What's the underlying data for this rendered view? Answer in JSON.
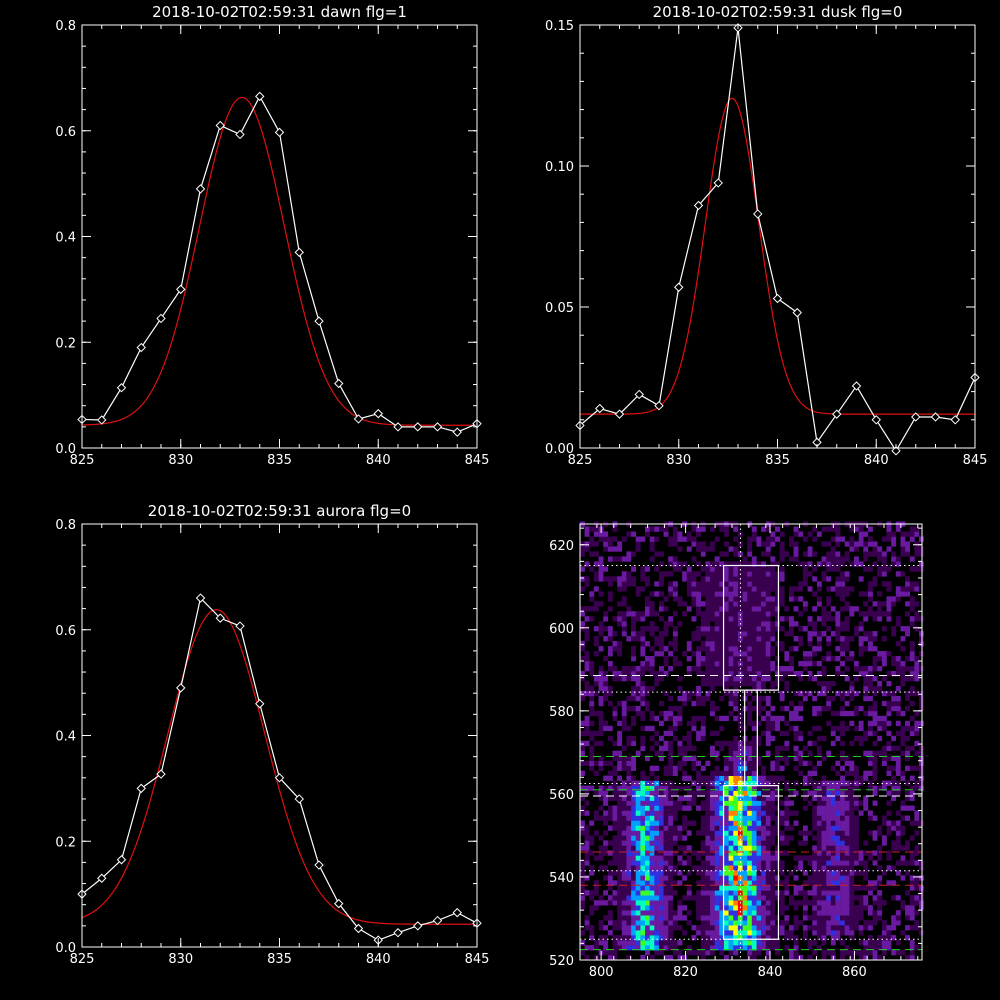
{
  "colors": {
    "background": "#000000",
    "axes": "#ffffff",
    "data_line": "#ffffff",
    "fit_line": "#e01010",
    "guide_green": "#22cc22",
    "guide_red": "#cc2020"
  },
  "chart_data": [
    {
      "type": "line",
      "title": "2018-10-02T02:59:31 dawn flg=1",
      "xlim": [
        825,
        845
      ],
      "ylim": [
        0,
        0.8
      ],
      "xticks": [
        825,
        830,
        835,
        840,
        845
      ],
      "yticks": [
        0.0,
        0.2,
        0.4,
        0.6,
        0.8
      ],
      "xtick_labels": [
        "825",
        "830",
        "835",
        "840",
        "845"
      ],
      "ytick_labels": [
        "0.0",
        "0.2",
        "0.4",
        "0.6",
        "0.8"
      ],
      "grid": false,
      "series": [
        {
          "style": "white-line-diamond-markers",
          "x": [
            825,
            826,
            827,
            828,
            829,
            830,
            831,
            832,
            833,
            834,
            835,
            836,
            837,
            838,
            839,
            840,
            841,
            842,
            843,
            844,
            845
          ],
          "y": [
            0.054,
            0.053,
            0.114,
            0.19,
            0.245,
            0.3,
            0.49,
            0.61,
            0.593,
            0.665,
            0.597,
            0.37,
            0.24,
            0.122,
            0.055,
            0.065,
            0.04,
            0.04,
            0.04,
            0.03,
            0.046
          ]
        },
        {
          "style": "red-gaussian-fit",
          "fit": {
            "amplitude": 0.62,
            "center": 833.1,
            "sigma": 2.15,
            "offset": 0.043
          }
        }
      ]
    },
    {
      "type": "line",
      "title": "2018-10-02T02:59:31 dusk flg=0",
      "xlim": [
        825,
        845
      ],
      "ylim": [
        0,
        0.15
      ],
      "xticks": [
        825,
        830,
        835,
        840,
        845
      ],
      "yticks": [
        0.0,
        0.05,
        0.1,
        0.15
      ],
      "xtick_labels": [
        "825",
        "830",
        "835",
        "840",
        "845"
      ],
      "ytick_labels": [
        "0.00",
        "0.05",
        "0.10",
        "0.15"
      ],
      "grid": false,
      "series": [
        {
          "style": "white-line-diamond-markers",
          "x": [
            825,
            826,
            827,
            828,
            829,
            830,
            831,
            832,
            833,
            834,
            835,
            836,
            837,
            838,
            839,
            840,
            841,
            842,
            843,
            844,
            845
          ],
          "y": [
            0.008,
            0.014,
            0.012,
            0.019,
            0.015,
            0.057,
            0.086,
            0.094,
            0.149,
            0.083,
            0.053,
            0.048,
            0.002,
            0.012,
            0.022,
            0.01,
            -0.001,
            0.011,
            0.011,
            0.01,
            0.025
          ]
        },
        {
          "style": "red-gaussian-fit",
          "fit": {
            "amplitude": 0.112,
            "center": 832.7,
            "sigma": 1.35,
            "offset": 0.012
          }
        }
      ]
    },
    {
      "type": "line",
      "title": "2018-10-02T02:59:31 aurora flg=0",
      "xlim": [
        825,
        845
      ],
      "ylim": [
        0,
        0.8
      ],
      "xticks": [
        825,
        830,
        835,
        840,
        845
      ],
      "yticks": [
        0.0,
        0.2,
        0.4,
        0.6,
        0.8
      ],
      "xtick_labels": [
        "825",
        "830",
        "835",
        "840",
        "845"
      ],
      "ytick_labels": [
        "0.0",
        "0.2",
        "0.4",
        "0.6",
        "0.8"
      ],
      "grid": false,
      "series": [
        {
          "style": "white-line-diamond-markers",
          "x": [
            825,
            826,
            827,
            828,
            829,
            830,
            831,
            832,
            833,
            834,
            835,
            836,
            837,
            838,
            839,
            840,
            841,
            842,
            843,
            844,
            845
          ],
          "y": [
            0.1,
            0.13,
            0.165,
            0.3,
            0.327,
            0.49,
            0.66,
            0.622,
            0.607,
            0.46,
            0.32,
            0.28,
            0.155,
            0.082,
            0.035,
            0.013,
            0.027,
            0.04,
            0.05,
            0.065,
            0.045
          ]
        },
        {
          "style": "red-gaussian-fit",
          "fit": {
            "amplitude": 0.595,
            "center": 831.8,
            "sigma": 2.45,
            "offset": 0.043
          }
        }
      ]
    },
    {
      "type": "heatmap",
      "title": "",
      "xlim": [
        795,
        876
      ],
      "ylim": [
        520,
        625
      ],
      "xticks": [
        800,
        820,
        840,
        860
      ],
      "yticks": [
        520,
        540,
        560,
        580,
        600,
        620
      ],
      "xtick_labels": [
        "800",
        "820",
        "840",
        "860"
      ],
      "ytick_labels": [
        "520",
        "540",
        "560",
        "580",
        "600",
        "620"
      ],
      "colormap": [
        "#000000",
        "#3a0050",
        "#6a1aa0",
        "#3030e0",
        "#00a0ff",
        "#00ffc0",
        "#40ff20",
        "#ffff00",
        "#ff8000",
        "#ff0000"
      ],
      "bands": [
        {
          "x_center": 810,
          "x_halfwidth": 3.2,
          "y_range": [
            522,
            563
          ],
          "peak": 0.62
        },
        {
          "x_center": 832,
          "x_halfwidth": 3.8,
          "y_range": [
            522,
            564
          ],
          "peak": 0.92
        },
        {
          "x_center": 833,
          "x_halfwidth": 1.5,
          "y_range": [
            562,
            572
          ],
          "peak": 0.45
        },
        {
          "x_center": 855,
          "x_halfwidth": 3.0,
          "y_range": [
            525,
            563
          ],
          "peak": 0.32
        },
        {
          "x_center": 832,
          "x_halfwidth": 6,
          "y_range": [
            585,
            615
          ],
          "peak": 0.18
        }
      ],
      "background_level": 0.12,
      "boxes": [
        {
          "x": [
            829,
            842
          ],
          "y": [
            585,
            615
          ]
        },
        {
          "x": [
            834,
            837
          ],
          "y": [
            562,
            585
          ]
        },
        {
          "x": [
            829,
            842
          ],
          "y": [
            525,
            562
          ]
        }
      ],
      "vertical_dotted_x": 833,
      "hlines": [
        {
          "y": 615,
          "color": "white",
          "style": "dotted"
        },
        {
          "y": 588.5,
          "color": "white",
          "style": "dashed"
        },
        {
          "y": 584.5,
          "color": "white",
          "style": "dotted"
        },
        {
          "y": 569,
          "color": "green",
          "style": "dashed"
        },
        {
          "y": 562.5,
          "color": "white",
          "style": "dotted"
        },
        {
          "y": 561,
          "color": "green",
          "style": "dashed"
        },
        {
          "y": 559.5,
          "color": "white",
          "style": "dashed"
        },
        {
          "y": 546,
          "color": "red",
          "style": "dashed"
        },
        {
          "y": 541.5,
          "color": "white",
          "style": "dotted"
        },
        {
          "y": 538,
          "color": "red",
          "style": "dashed"
        },
        {
          "y": 525,
          "color": "white",
          "style": "dotted"
        },
        {
          "y": 522.5,
          "color": "green",
          "style": "dashed"
        }
      ]
    }
  ]
}
